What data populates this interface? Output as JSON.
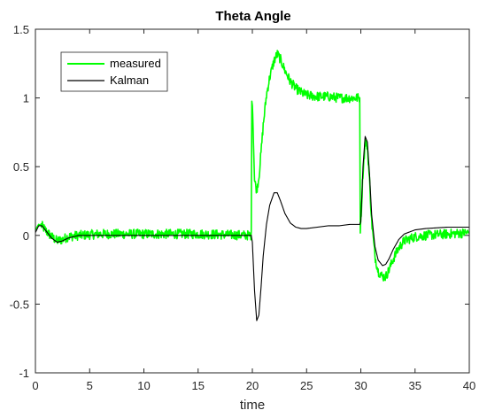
{
  "chart_data": {
    "type": "line",
    "title": "Theta Angle",
    "xlabel": "time",
    "ylabel": "",
    "xlim": [
      0,
      40
    ],
    "ylim": [
      -1,
      1.5
    ],
    "xticks": [
      "0",
      "5",
      "10",
      "15",
      "20",
      "25",
      "30",
      "35",
      "40"
    ],
    "yticks": [
      "-1",
      "-0.5",
      "0",
      "0.5",
      "1",
      "1.5"
    ],
    "grid": false,
    "legend_position": "top-left",
    "series": [
      {
        "name": "measured",
        "color": "#00ff00",
        "x": [
          0,
          0.3,
          0.6,
          1.0,
          1.5,
          2.0,
          2.5,
          3.0,
          4.0,
          6.0,
          10.0,
          15.0,
          19.9,
          19.95,
          20.0,
          20.1,
          20.2,
          20.4,
          20.6,
          20.8,
          21.0,
          21.3,
          21.6,
          22.0,
          22.3,
          22.6,
          23.0,
          23.5,
          24.0,
          24.5,
          25.0,
          26.0,
          27.0,
          28.0,
          29.0,
          29.9,
          29.95,
          30.0,
          30.2,
          30.4,
          30.6,
          30.8,
          31.0,
          31.3,
          31.6,
          32.0,
          32.3,
          32.6,
          33.0,
          33.5,
          34.0,
          35.0,
          36.0,
          38.0,
          40.0
        ],
        "y": [
          0.04,
          0.08,
          0.07,
          0.03,
          -0.01,
          -0.04,
          -0.03,
          -0.01,
          0.0,
          0.01,
          0.01,
          0.01,
          0.0,
          1.0,
          0.98,
          0.7,
          0.4,
          0.33,
          0.42,
          0.6,
          0.8,
          1.02,
          1.15,
          1.27,
          1.32,
          1.28,
          1.2,
          1.12,
          1.07,
          1.04,
          1.02,
          1.01,
          1.01,
          1.0,
          1.0,
          1.0,
          0.05,
          0.1,
          0.45,
          0.68,
          0.65,
          0.4,
          0.1,
          -0.15,
          -0.26,
          -0.3,
          -0.3,
          -0.25,
          -0.17,
          -0.09,
          -0.04,
          -0.01,
          0.0,
          0.01,
          0.02
        ]
      },
      {
        "name": "Kalman",
        "color": "#000000",
        "x": [
          0,
          0.3,
          0.6,
          1.0,
          1.5,
          2.0,
          2.5,
          3.0,
          3.5,
          4.0,
          6.0,
          10.0,
          15.0,
          19.9,
          20.0,
          20.2,
          20.4,
          20.6,
          20.8,
          21.0,
          21.3,
          21.6,
          22.0,
          22.3,
          22.6,
          23.0,
          23.5,
          24.0,
          24.5,
          25.0,
          26.0,
          27.0,
          28.0,
          29.0,
          29.9,
          30.0,
          30.2,
          30.4,
          30.6,
          30.8,
          31.0,
          31.3,
          31.6,
          32.0,
          32.3,
          32.6,
          33.0,
          33.5,
          34.0,
          35.0,
          36.0,
          38.0,
          40.0
        ],
        "y": [
          0.02,
          0.07,
          0.07,
          0.03,
          -0.02,
          -0.05,
          -0.04,
          -0.02,
          -0.01,
          0.0,
          0.0,
          0.0,
          0.0,
          0.0,
          -0.05,
          -0.4,
          -0.62,
          -0.58,
          -0.38,
          -0.15,
          0.08,
          0.22,
          0.31,
          0.31,
          0.25,
          0.16,
          0.09,
          0.06,
          0.05,
          0.05,
          0.06,
          0.07,
          0.07,
          0.08,
          0.08,
          0.1,
          0.5,
          0.72,
          0.68,
          0.45,
          0.15,
          -0.08,
          -0.18,
          -0.22,
          -0.21,
          -0.17,
          -0.1,
          -0.03,
          0.01,
          0.04,
          0.05,
          0.06,
          0.06
        ]
      }
    ]
  }
}
